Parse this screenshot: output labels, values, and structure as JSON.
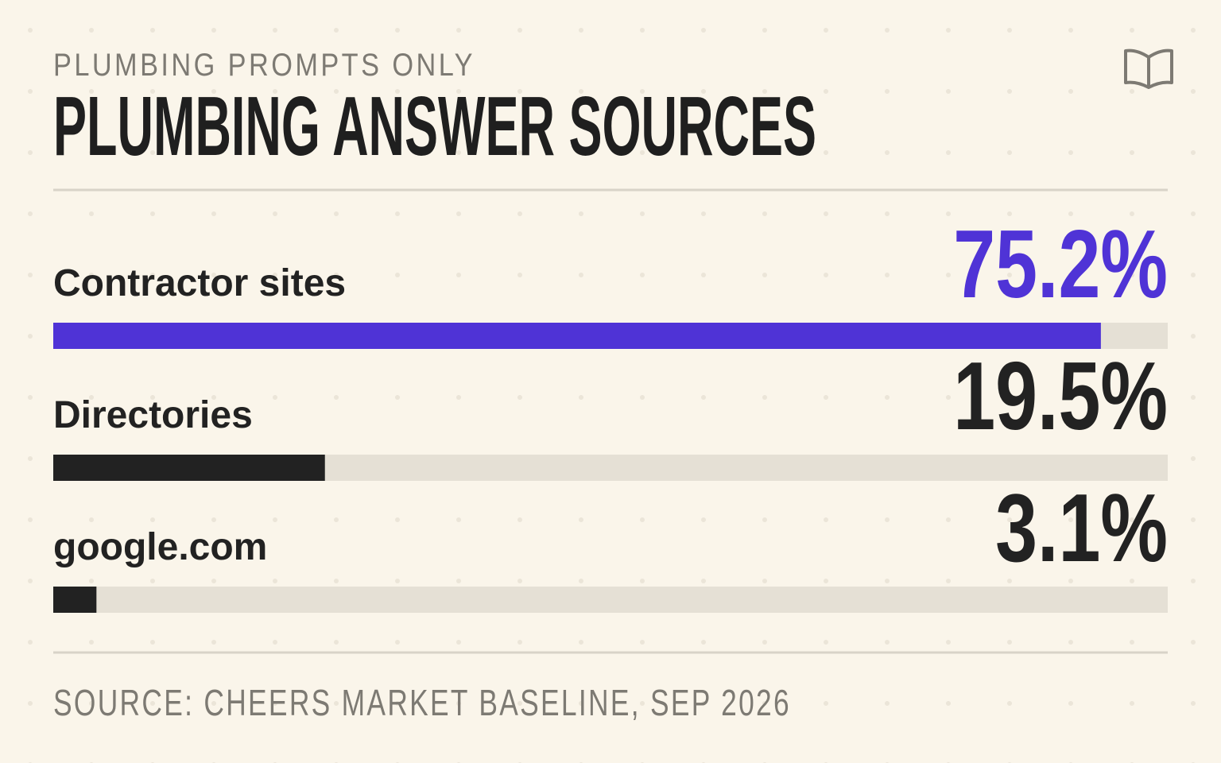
{
  "chart_data": {
    "type": "bar",
    "orientation": "horizontal",
    "subtitle": "PLUMBING PROMPTS ONLY",
    "title": "PLUMBING ANSWER SOURCES",
    "categories": [
      "Contractor sites",
      "Directories",
      "google.com"
    ],
    "values": [
      75.2,
      19.5,
      3.1
    ],
    "value_labels": [
      "75.2%",
      "19.5%",
      "3.1%"
    ],
    "colors": [
      "#4f33d6",
      "#222222",
      "#222222"
    ],
    "xlim": [
      0,
      80
    ],
    "source": "SOURCE: CHEERS MARKET BASELINE, SEP 2026"
  }
}
